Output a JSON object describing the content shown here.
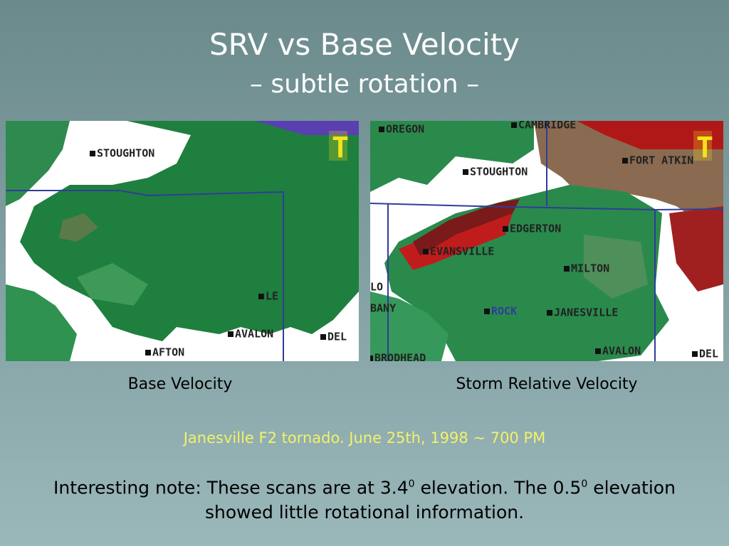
{
  "title": "SRV vs Base Velocity",
  "subtitle": "– subtle rotation –",
  "panels": [
    {
      "caption": "Base Velocity",
      "marker": "T",
      "map_labels": [
        "STOUGHTON",
        "AVALON",
        "AFTON",
        "DEL",
        "LE"
      ]
    },
    {
      "caption": "Storm Relative Velocity",
      "marker": "T",
      "map_labels": [
        "OREGON",
        "CAMBRIDGE",
        "STOUGHTON",
        "FORT ATKIN",
        "EDGERTON",
        "EVANSVILLE",
        "MILTON",
        "ROCK",
        "JANESVILLE",
        "AVALON",
        "DEL",
        "BRODHEAD",
        "BANY",
        "LO"
      ]
    }
  ],
  "event": "Janesville F2 tornado.  June 25th, 1998 ~ 700 PM",
  "note": [
    "Interesting note: These scans are at 3.4",
    "0",
    " elevation.  The 0.5",
    "0",
    " elevation",
    "showed little rotational information."
  ]
}
